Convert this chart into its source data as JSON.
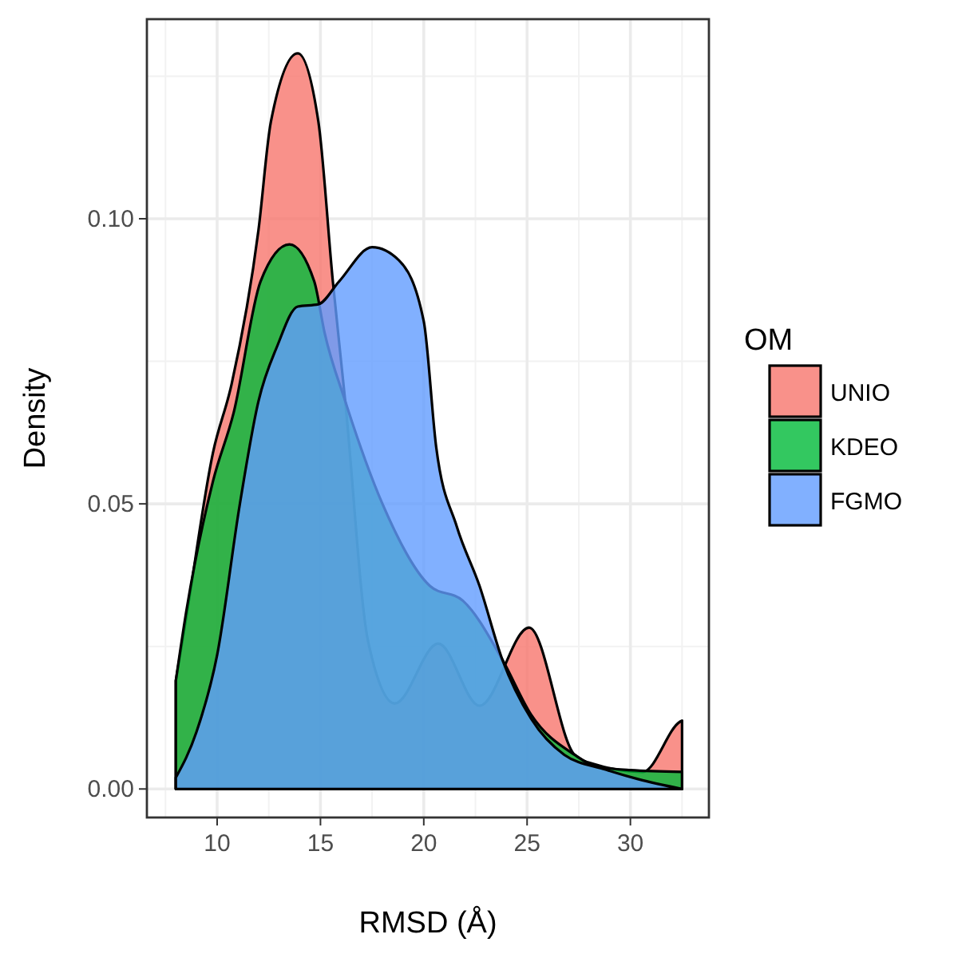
{
  "chart_data": {
    "type": "area",
    "xlabel": "RMSD (Å)",
    "ylabel": "Density",
    "legend_title": "OM",
    "legend": "right",
    "grid": true,
    "xlim": [
      6.6,
      33.8
    ],
    "xticks": [
      10,
      15,
      20,
      25,
      30
    ],
    "ylim": [
      -0.005,
      0.135
    ],
    "yticks": [
      {
        "value": 0,
        "label": "0.00"
      },
      {
        "value": 0.05,
        "label": "0.05"
      },
      {
        "value": 0.1,
        "label": "0.10"
      }
    ],
    "series": [
      {
        "name": "UNIO",
        "color": "#f8766d",
        "x": [
          8,
          8.5,
          9.8,
          10.7,
          12,
          12.6,
          13.9,
          14.9,
          15.6,
          16.2,
          17.3,
          18.6,
          20.7,
          22.7,
          25.1,
          27.3,
          28.3,
          30.6,
          32.4,
          32.5
        ],
        "values": [
          0.019,
          0.03,
          0.059,
          0.071,
          0.098,
          0.117,
          0.129,
          0.117,
          0.089,
          0.068,
          0.026,
          0.015,
          0.0255,
          0.0146,
          0.0283,
          0.006,
          0.0043,
          0.003,
          0.0118,
          0.012
        ]
      },
      {
        "name": "KDEO",
        "color": "#00ba38",
        "x": [
          8,
          8.5,
          9.8,
          10.8,
          12.1,
          13.5,
          14.7,
          15.2,
          16.2,
          18,
          20.3,
          21.9,
          23.8,
          25.2,
          27.3,
          28.3,
          30,
          32.5
        ],
        "values": [
          0.019,
          0.031,
          0.054,
          0.066,
          0.089,
          0.0955,
          0.089,
          0.08,
          0.068,
          0.05,
          0.0356,
          0.033,
          0.0227,
          0.013,
          0.006,
          0.004,
          0.0033,
          0.003
        ]
      },
      {
        "name": "FGMO",
        "color": "#619cff",
        "x": [
          8,
          9,
          10,
          11.1,
          12,
          12.9,
          13.9,
          14.9,
          15.9,
          17.5,
          18.8,
          20,
          20.6,
          21.6,
          22.7,
          23.8,
          25.2,
          26.8,
          28.8,
          30.4,
          32.5
        ],
        "values": [
          0.002,
          0.01,
          0.0235,
          0.05,
          0.068,
          0.0776,
          0.0846,
          0.085,
          0.089,
          0.095,
          0.0927,
          0.082,
          0.06,
          0.046,
          0.0356,
          0.0227,
          0.0123,
          0.006,
          0.0034,
          0.0017,
          0
        ]
      }
    ]
  }
}
